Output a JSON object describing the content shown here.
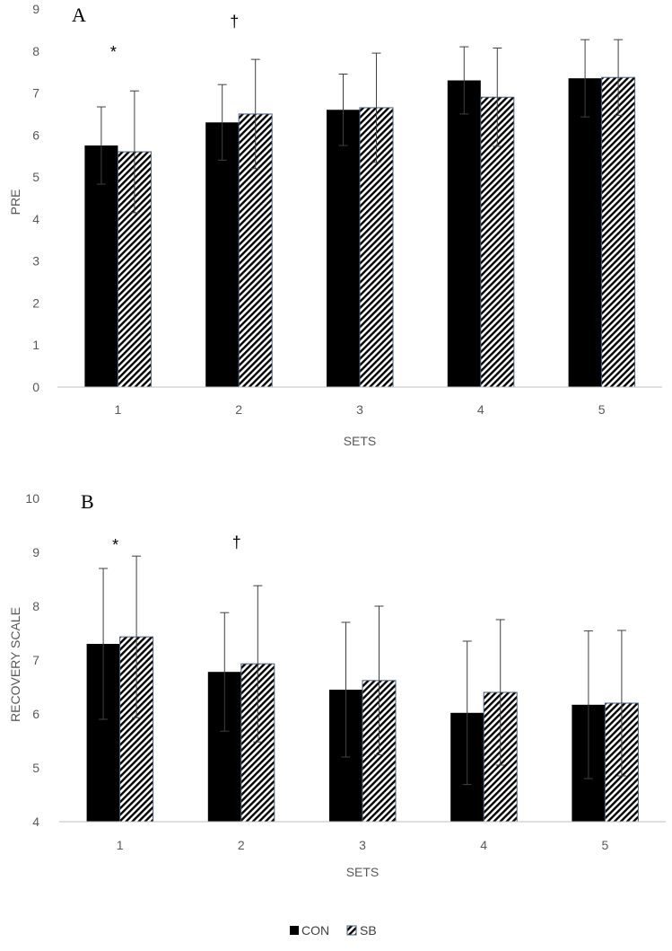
{
  "colors": {
    "con": "#000000",
    "sb_hatch": "#000000",
    "sb_border": "#4a5f7a",
    "axis": "#bfbfbf",
    "error_bar": "#404040"
  },
  "legend": {
    "items": [
      {
        "label": "CON",
        "pattern": "solid"
      },
      {
        "label": "SB",
        "pattern": "hatch"
      }
    ]
  },
  "chart_data": [
    {
      "type": "bar",
      "panel_label": "A",
      "xlabel": "SETS",
      "ylabel": "PRE",
      "ylim": [
        0,
        9
      ],
      "yticks": [
        "0",
        "1",
        "2",
        "3",
        "4",
        "5",
        "6",
        "7",
        "8",
        "9"
      ],
      "categories": [
        "1",
        "2",
        "3",
        "4",
        "5"
      ],
      "series": [
        {
          "name": "CON",
          "values": [
            5.75,
            6.3,
            6.6,
            7.3,
            7.35
          ],
          "errors": [
            0.92,
            0.9,
            0.85,
            0.8,
            0.92
          ]
        },
        {
          "name": "SB",
          "values": [
            5.6,
            6.5,
            6.65,
            6.9,
            7.37
          ],
          "errors": [
            1.45,
            1.3,
            1.3,
            1.17,
            0.9
          ]
        }
      ],
      "annotations": [
        {
          "category": "1",
          "text": "*"
        },
        {
          "category": "2",
          "text": "†"
        }
      ],
      "grid": false
    },
    {
      "type": "bar",
      "panel_label": "B",
      "xlabel": "SETS",
      "ylabel": "RECOVERY SCALE",
      "ylim": [
        4,
        10
      ],
      "yticks": [
        "4",
        "5",
        "6",
        "7",
        "8",
        "9",
        "10"
      ],
      "categories": [
        "1",
        "2",
        "3",
        "4",
        "5"
      ],
      "series": [
        {
          "name": "CON",
          "values": [
            7.3,
            6.78,
            6.45,
            6.02,
            6.17
          ],
          "errors": [
            1.4,
            1.1,
            1.25,
            1.33,
            1.37
          ]
        },
        {
          "name": "SB",
          "values": [
            7.43,
            6.93,
            6.62,
            6.4,
            6.2
          ],
          "errors": [
            1.5,
            1.45,
            1.38,
            1.35,
            1.35
          ]
        }
      ],
      "annotations": [
        {
          "category": "1",
          "text": "*"
        },
        {
          "category": "2",
          "text": "†"
        }
      ],
      "grid": false
    }
  ]
}
